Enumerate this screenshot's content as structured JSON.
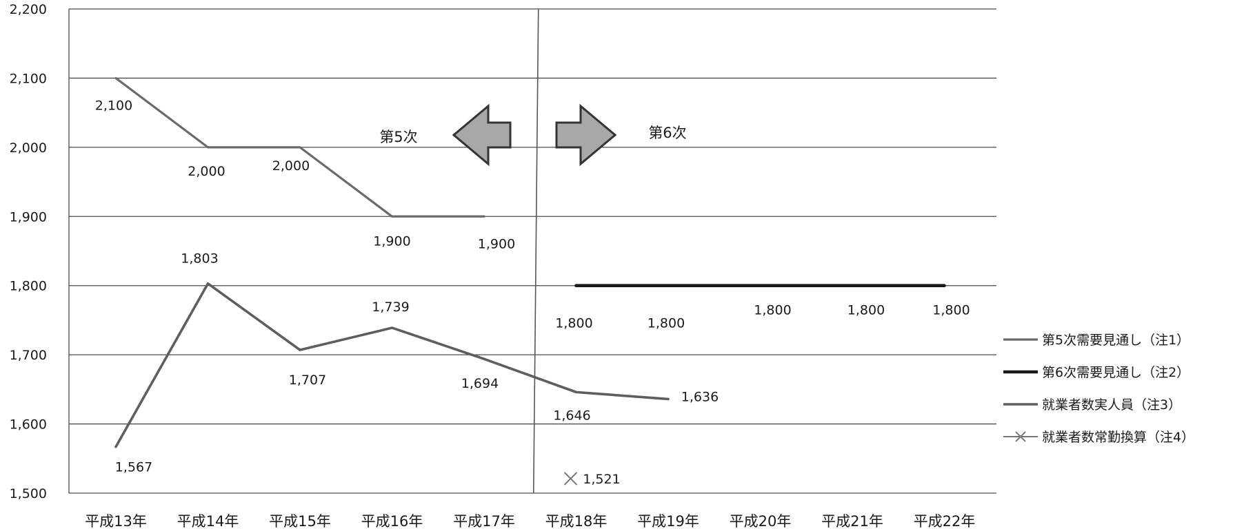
{
  "colors": {
    "series_5th": "#6a6a6a",
    "series_6th": "#1a1a1a",
    "series_actual": "#5e5e5e",
    "series_fte": "#777777",
    "arrow_fill": "#a8a8a8",
    "arrow_stroke": "#333333"
  },
  "chart_data": {
    "type": "line",
    "title": "",
    "xlabel": "",
    "ylabel": "",
    "ylim": [
      1500,
      2200
    ],
    "yticks": [
      1500,
      1600,
      1700,
      1800,
      1900,
      2000,
      2100,
      2200
    ],
    "ytick_labels": [
      "1,500",
      "1,600",
      "1,700",
      "1,800",
      "1,900",
      "2,000",
      "2,100",
      "2,200"
    ],
    "categories": [
      "平成13年",
      "平成14年",
      "平成15年",
      "平成16年",
      "平成17年",
      "平成18年",
      "平成19年",
      "平成20年",
      "平成21年",
      "平成22年"
    ],
    "grid": true,
    "legend_position": "right",
    "divider_between": [
      "平成17年",
      "平成18年"
    ],
    "phase_labels": {
      "left": "第5次",
      "right": "第6次",
      "left_arrow_icon": "left-arrow-icon",
      "right_arrow_icon": "right-arrow-icon"
    },
    "series": [
      {
        "name": "第5次需要見通し（注1）",
        "marker": "none",
        "color_key": "series_5th",
        "values": [
          2100,
          2000,
          2000,
          1900,
          1900,
          null,
          null,
          null,
          null,
          null
        ],
        "labels": [
          "2,100",
          "2,000",
          "2,000",
          "1,900",
          "1,900",
          null,
          null,
          null,
          null,
          null
        ]
      },
      {
        "name": "第6次需要見通し（注2）",
        "marker": "none",
        "color_key": "series_6th",
        "values": [
          null,
          null,
          null,
          null,
          null,
          1800,
          1800,
          1800,
          1800,
          1800
        ],
        "labels": [
          null,
          null,
          null,
          null,
          null,
          "1,800",
          "1,800",
          "1,800",
          "1,800",
          "1,800"
        ]
      },
      {
        "name": "就業者数実人員（注3）",
        "marker": "none",
        "color_key": "series_actual",
        "values": [
          1567,
          1803,
          1707,
          1739,
          1694,
          1646,
          1636,
          null,
          null,
          null
        ],
        "labels": [
          "1,567",
          "1,803",
          "1,707",
          "1,739",
          "1,694",
          "1,646",
          "1,636",
          null,
          null,
          null
        ]
      },
      {
        "name": "就業者数常勤換算（注4）",
        "marker": "x",
        "color_key": "series_fte",
        "values": [
          null,
          null,
          null,
          null,
          null,
          1521,
          null,
          null,
          null,
          null
        ],
        "labels": [
          null,
          null,
          null,
          null,
          null,
          "1,521",
          null,
          null,
          null,
          null
        ]
      }
    ]
  }
}
